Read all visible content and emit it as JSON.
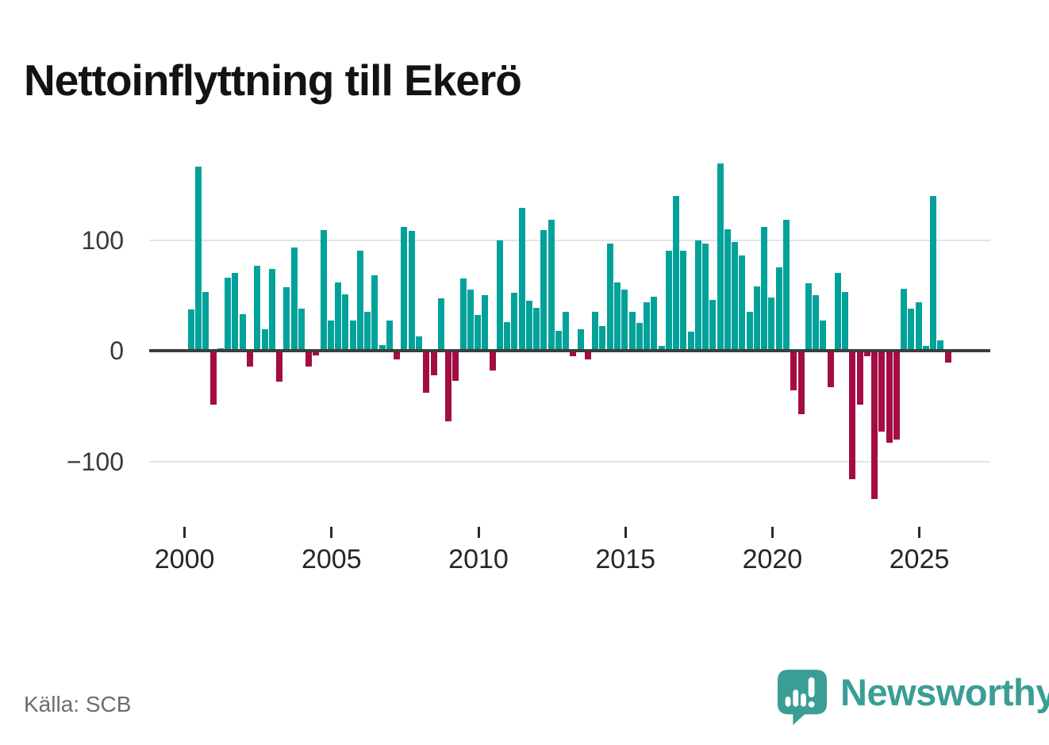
{
  "title": "Nettoinflyttning till Ekerö",
  "source_note": "Källa: SCB",
  "branding": {
    "name": "Newsworthy"
  },
  "colors": {
    "positive_bar": "#00a29a",
    "negative_bar": "#a40c44",
    "zero_line": "#3d3d3d",
    "gridline": "#e4e4e4",
    "brand_teal": "#3a9e95",
    "title_text": "#131313",
    "axis_text": "#333333",
    "source_text": "#6d6d6d"
  },
  "chart_data": {
    "type": "bar",
    "title": "Nettoinflyttning till Ekerö",
    "frequency": "quarterly",
    "start_period": "2000 Q1",
    "end_period": "2025 Q4",
    "grid": "horizontal gridlines at 100 and -100, dark zero axis",
    "legend": "none",
    "x_axis": {
      "ticks": [
        {
          "label": "2000",
          "year": 2000
        },
        {
          "label": "2005",
          "year": 2005
        },
        {
          "label": "2010",
          "year": 2010
        },
        {
          "label": "2015",
          "year": 2015
        },
        {
          "label": "2020",
          "year": 2020
        },
        {
          "label": "2025",
          "year": 2025
        }
      ]
    },
    "y_axis": {
      "ticks": [
        {
          "label": "100",
          "value": 100
        },
        {
          "label": "0",
          "value": 0
        },
        {
          "label": "−100",
          "value": -100
        }
      ],
      "range": [
        -150,
        185
      ]
    },
    "series_by_year": {
      "2000": [
        37,
        166,
        53,
        -49
      ],
      "2001": [
        2,
        66,
        70,
        33
      ],
      "2002": [
        -14,
        77,
        19,
        74
      ],
      "2003": [
        -28,
        57,
        93,
        38
      ],
      "2004": [
        -14,
        -4,
        109,
        27
      ],
      "2005": [
        62,
        51,
        27,
        90
      ],
      "2006": [
        35,
        68,
        5,
        27
      ],
      "2007": [
        -8,
        112,
        108,
        13
      ],
      "2008": [
        -38,
        -22,
        47,
        -64
      ],
      "2009": [
        -27,
        65,
        55,
        32
      ],
      "2010": [
        50,
        -18,
        100,
        26
      ],
      "2011": [
        52,
        129,
        45,
        39
      ],
      "2012": [
        109,
        118,
        18,
        35
      ],
      "2013": [
        -5,
        19,
        -8,
        35
      ],
      "2014": [
        22,
        97,
        62,
        55
      ],
      "2015": [
        35,
        25,
        44,
        49
      ],
      "2016": [
        4,
        90,
        140,
        90
      ],
      "2017": [
        17,
        100,
        97,
        46
      ],
      "2018": [
        169,
        110,
        98,
        86
      ],
      "2019": [
        35,
        58,
        112,
        48
      ],
      "2020": [
        75,
        118,
        -36,
        -57
      ],
      "2021": [
        61,
        50,
        27,
        -33
      ],
      "2022": [
        70,
        53,
        -116,
        -49
      ],
      "2023": [
        -5,
        -134,
        -73,
        -83
      ],
      "2024": [
        -80,
        56,
        38,
        44
      ],
      "2025": [
        4,
        140,
        9,
        -11
      ]
    }
  }
}
